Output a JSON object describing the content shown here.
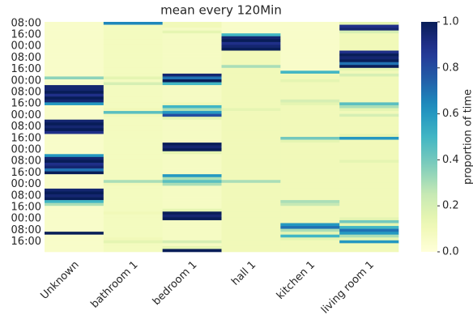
{
  "chart_data": {
    "type": "heatmap",
    "title": "mean every 120Min",
    "colorbar_label": "proportion of time",
    "colormap": "YlGnBu",
    "columns": [
      "Unknown",
      "bathroom 1",
      "bedroom 1",
      "hall 1",
      "kitchen 1",
      "living room 1"
    ],
    "categories": [
      "08:00",
      null,
      null,
      null,
      "16:00",
      null,
      null,
      null,
      "00:00",
      null,
      null,
      null,
      "08:00",
      null,
      null,
      null,
      "16:00",
      null,
      null,
      null,
      "00:00",
      null,
      null,
      null,
      "08:00",
      null,
      null,
      null,
      "16:00",
      null,
      null,
      null,
      "00:00",
      null,
      null,
      null,
      "08:00",
      null,
      null,
      null,
      "16:00",
      null,
      null,
      null,
      "00:00",
      null,
      null,
      null,
      "08:00",
      null,
      null,
      null,
      "16:00",
      null,
      null,
      null,
      "00:00",
      null,
      null,
      null,
      "08:00",
      null,
      null,
      null,
      "16:00",
      null,
      null,
      null,
      "00:00",
      null,
      null,
      null,
      "08:00",
      null,
      null,
      null,
      "16:00",
      null,
      null,
      null
    ],
    "values": [
      [
        0.05,
        0.65,
        0.1,
        0.05,
        0.05,
        0.15
      ],
      [
        0.05,
        0.08,
        0.1,
        0.05,
        0.05,
        0.9
      ],
      [
        0.05,
        0.08,
        0.07,
        0.05,
        0.05,
        0.95
      ],
      [
        0.05,
        0.08,
        0.15,
        0.05,
        0.05,
        0.2
      ],
      [
        0.05,
        0.08,
        0.07,
        0.5,
        0.05,
        0.1
      ],
      [
        0.05,
        0.08,
        0.07,
        0.95,
        0.05,
        0.1
      ],
      [
        0.05,
        0.08,
        0.07,
        1.0,
        0.05,
        0.1
      ],
      [
        0.05,
        0.08,
        0.07,
        0.9,
        0.05,
        0.1
      ],
      [
        0.05,
        0.08,
        0.07,
        0.95,
        0.05,
        0.1
      ],
      [
        0.05,
        0.08,
        0.07,
        1.0,
        0.05,
        0.1
      ],
      [
        0.05,
        0.08,
        0.07,
        0.1,
        0.05,
        0.9
      ],
      [
        0.05,
        0.08,
        0.07,
        0.1,
        0.05,
        1.0
      ],
      [
        0.05,
        0.08,
        0.07,
        0.1,
        0.05,
        0.95
      ],
      [
        0.05,
        0.08,
        0.07,
        0.1,
        0.05,
        1.0
      ],
      [
        0.05,
        0.08,
        0.07,
        0.1,
        0.05,
        0.7
      ],
      [
        0.05,
        0.08,
        0.07,
        0.3,
        0.05,
        1.0
      ],
      [
        0.05,
        0.08,
        0.07,
        0.1,
        0.05,
        0.15
      ],
      [
        0.05,
        0.08,
        0.07,
        0.1,
        0.5,
        0.1
      ],
      [
        0.05,
        0.08,
        0.95,
        0.1,
        0.1,
        0.2
      ],
      [
        0.35,
        0.15,
        0.7,
        0.1,
        0.1,
        0.1
      ],
      [
        0.05,
        0.08,
        1.0,
        0.1,
        0.15,
        0.1
      ],
      [
        0.05,
        0.2,
        0.5,
        0.1,
        0.1,
        0.1
      ],
      [
        0.95,
        0.08,
        0.07,
        0.1,
        0.1,
        0.1
      ],
      [
        0.95,
        0.08,
        0.07,
        0.1,
        0.1,
        0.1
      ],
      [
        1.0,
        0.08,
        0.07,
        0.1,
        0.1,
        0.1
      ],
      [
        0.9,
        0.08,
        0.07,
        0.1,
        0.1,
        0.1
      ],
      [
        1.0,
        0.08,
        0.07,
        0.1,
        0.1,
        0.1
      ],
      [
        0.95,
        0.08,
        0.07,
        0.1,
        0.2,
        0.1
      ],
      [
        0.6,
        0.08,
        0.1,
        0.1,
        0.15,
        0.45
      ],
      [
        0.05,
        0.08,
        0.5,
        0.1,
        0.1,
        0.3
      ],
      [
        0.05,
        0.1,
        0.3,
        0.15,
        0.1,
        0.15
      ],
      [
        0.05,
        0.45,
        0.6,
        0.1,
        0.1,
        0.1
      ],
      [
        0.05,
        0.1,
        0.8,
        0.1,
        0.1,
        0.2
      ],
      [
        0.05,
        0.08,
        0.15,
        0.1,
        0.1,
        0.1
      ],
      [
        0.95,
        0.08,
        0.07,
        0.1,
        0.1,
        0.1
      ],
      [
        1.0,
        0.08,
        0.07,
        0.1,
        0.1,
        0.1
      ],
      [
        0.95,
        0.08,
        0.07,
        0.1,
        0.1,
        0.1
      ],
      [
        1.0,
        0.08,
        0.07,
        0.1,
        0.1,
        0.1
      ],
      [
        0.9,
        0.08,
        0.07,
        0.1,
        0.1,
        0.1
      ],
      [
        0.05,
        0.08,
        0.07,
        0.1,
        0.1,
        0.15
      ],
      [
        0.05,
        0.08,
        0.07,
        0.1,
        0.4,
        0.6
      ],
      [
        0.05,
        0.08,
        0.07,
        0.1,
        0.15,
        0.1
      ],
      [
        0.05,
        0.08,
        1.0,
        0.1,
        0.1,
        0.1
      ],
      [
        0.05,
        0.08,
        0.95,
        0.1,
        0.1,
        0.1
      ],
      [
        0.05,
        0.08,
        1.0,
        0.1,
        0.1,
        0.1
      ],
      [
        0.05,
        0.08,
        0.15,
        0.1,
        0.1,
        0.1
      ],
      [
        0.6,
        0.08,
        0.07,
        0.1,
        0.1,
        0.1
      ],
      [
        0.95,
        0.08,
        0.07,
        0.1,
        0.1,
        0.1
      ],
      [
        1.0,
        0.08,
        0.07,
        0.1,
        0.1,
        0.15
      ],
      [
        0.9,
        0.08,
        0.07,
        0.1,
        0.1,
        0.1
      ],
      [
        0.95,
        0.08,
        0.07,
        0.1,
        0.1,
        0.1
      ],
      [
        0.7,
        0.08,
        0.07,
        0.1,
        0.1,
        0.1
      ],
      [
        1.0,
        0.08,
        0.07,
        0.1,
        0.1,
        0.1
      ],
      [
        0.05,
        0.08,
        0.6,
        0.1,
        0.1,
        0.1
      ],
      [
        0.05,
        0.08,
        0.3,
        0.1,
        0.1,
        0.1
      ],
      [
        0.05,
        0.3,
        0.45,
        0.3,
        0.1,
        0.1
      ],
      [
        0.05,
        0.1,
        0.3,
        0.1,
        0.1,
        0.1
      ],
      [
        0.05,
        0.08,
        0.07,
        0.1,
        0.1,
        0.1
      ],
      [
        0.95,
        0.08,
        0.07,
        0.1,
        0.1,
        0.1
      ],
      [
        1.0,
        0.08,
        0.07,
        0.1,
        0.1,
        0.1
      ],
      [
        0.95,
        0.08,
        0.07,
        0.1,
        0.1,
        0.1
      ],
      [
        1.0,
        0.08,
        0.07,
        0.1,
        0.1,
        0.1
      ],
      [
        0.5,
        0.08,
        0.07,
        0.1,
        0.3,
        0.1
      ],
      [
        0.3,
        0.08,
        0.07,
        0.1,
        0.25,
        0.1
      ],
      [
        0.05,
        0.08,
        0.07,
        0.1,
        0.1,
        0.1
      ],
      [
        0.05,
        0.08,
        0.15,
        0.1,
        0.1,
        0.1
      ],
      [
        0.05,
        0.1,
        1.0,
        0.1,
        0.1,
        0.1
      ],
      [
        0.05,
        0.08,
        0.95,
        0.1,
        0.1,
        0.1
      ],
      [
        0.05,
        0.08,
        1.0,
        0.1,
        0.1,
        0.15
      ],
      [
        0.05,
        0.08,
        0.07,
        0.1,
        0.1,
        0.4
      ],
      [
        0.05,
        0.08,
        0.07,
        0.1,
        0.6,
        0.15
      ],
      [
        0.05,
        0.08,
        0.07,
        0.1,
        0.7,
        0.5
      ],
      [
        0.05,
        0.08,
        0.07,
        0.1,
        0.3,
        0.7
      ],
      [
        1.0,
        0.08,
        0.07,
        0.1,
        0.15,
        0.6
      ],
      [
        0.05,
        0.08,
        0.07,
        0.1,
        0.5,
        0.3
      ],
      [
        0.05,
        0.1,
        0.07,
        0.1,
        0.15,
        0.15
      ],
      [
        0.05,
        0.15,
        0.2,
        0.1,
        0.1,
        0.6
      ],
      [
        0.05,
        0.08,
        0.07,
        0.1,
        0.1,
        0.1
      ],
      [
        0.05,
        0.08,
        0.15,
        0.1,
        0.1,
        0.1
      ],
      [
        0.05,
        0.08,
        1.0,
        0.1,
        0.1,
        0.1
      ]
    ],
    "clim": [
      0,
      1
    ],
    "cticks": [
      {
        "value": 0,
        "label": "0.0"
      },
      {
        "value": 0.2,
        "label": "0.2"
      },
      {
        "value": 0.4,
        "label": "0.4"
      },
      {
        "value": 0.6,
        "label": "0.6"
      },
      {
        "value": 0.8,
        "label": "0.8"
      },
      {
        "value": 1,
        "label": "1.0"
      }
    ]
  }
}
